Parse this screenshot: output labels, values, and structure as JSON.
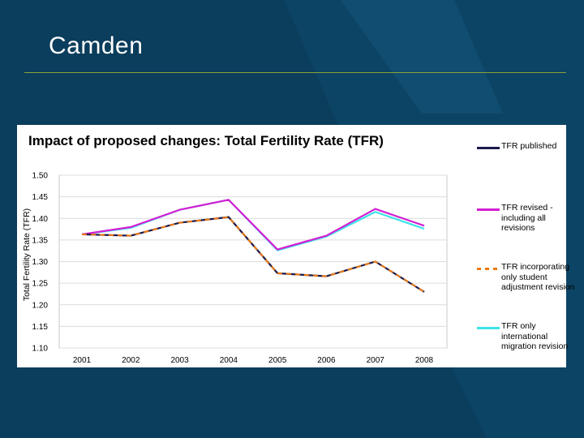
{
  "slide": {
    "title": "Camden",
    "background": "#0b3d5c",
    "rule_color": "#8aa23a"
  },
  "chart_data": {
    "type": "line",
    "title": "Impact of proposed changes: Total Fertility Rate (TFR)",
    "xlabel": "",
    "ylabel": "Total Fertility Rate (TFR)",
    "categories": [
      "2001",
      "2002",
      "2003",
      "2004",
      "2005",
      "2006",
      "2007",
      "2008"
    ],
    "ylim": [
      1.1,
      1.5
    ],
    "yticks": [
      "1.50",
      "1.45",
      "1.40",
      "1.35",
      "1.30",
      "1.25",
      "1.20",
      "1.15",
      "1.10"
    ],
    "grid": true,
    "legend_position": "right",
    "series": [
      {
        "name": "TFR published",
        "color": "#1a1a4a",
        "dash": "solid",
        "values": [
          1.363,
          1.36,
          1.39,
          1.403,
          1.273,
          1.266,
          1.3,
          1.23
        ]
      },
      {
        "name": "TFR revised - including all revisions",
        "color": "#d41ed4",
        "dash": "solid",
        "values": [
          1.363,
          1.38,
          1.42,
          1.443,
          1.328,
          1.36,
          1.422,
          1.383
        ]
      },
      {
        "name": "TFR incorporating only student adjustment revision",
        "color": "#f07a10",
        "dash": "dashed",
        "values": [
          1.363,
          1.36,
          1.39,
          1.403,
          1.273,
          1.266,
          1.3,
          1.23
        ]
      },
      {
        "name": "TFR only international migration revision",
        "color": "#3de3e8",
        "dash": "solid",
        "values": [
          1.363,
          1.378,
          1.42,
          1.443,
          1.326,
          1.358,
          1.415,
          1.376
        ]
      }
    ],
    "legend_labels": [
      [
        "TFR published"
      ],
      [
        "TFR revised -",
        "including all",
        "revisions"
      ],
      [
        "TFR incorporating",
        "only student",
        "adjustment revision"
      ],
      [
        "TFR only",
        "international",
        "migration revision"
      ]
    ]
  }
}
